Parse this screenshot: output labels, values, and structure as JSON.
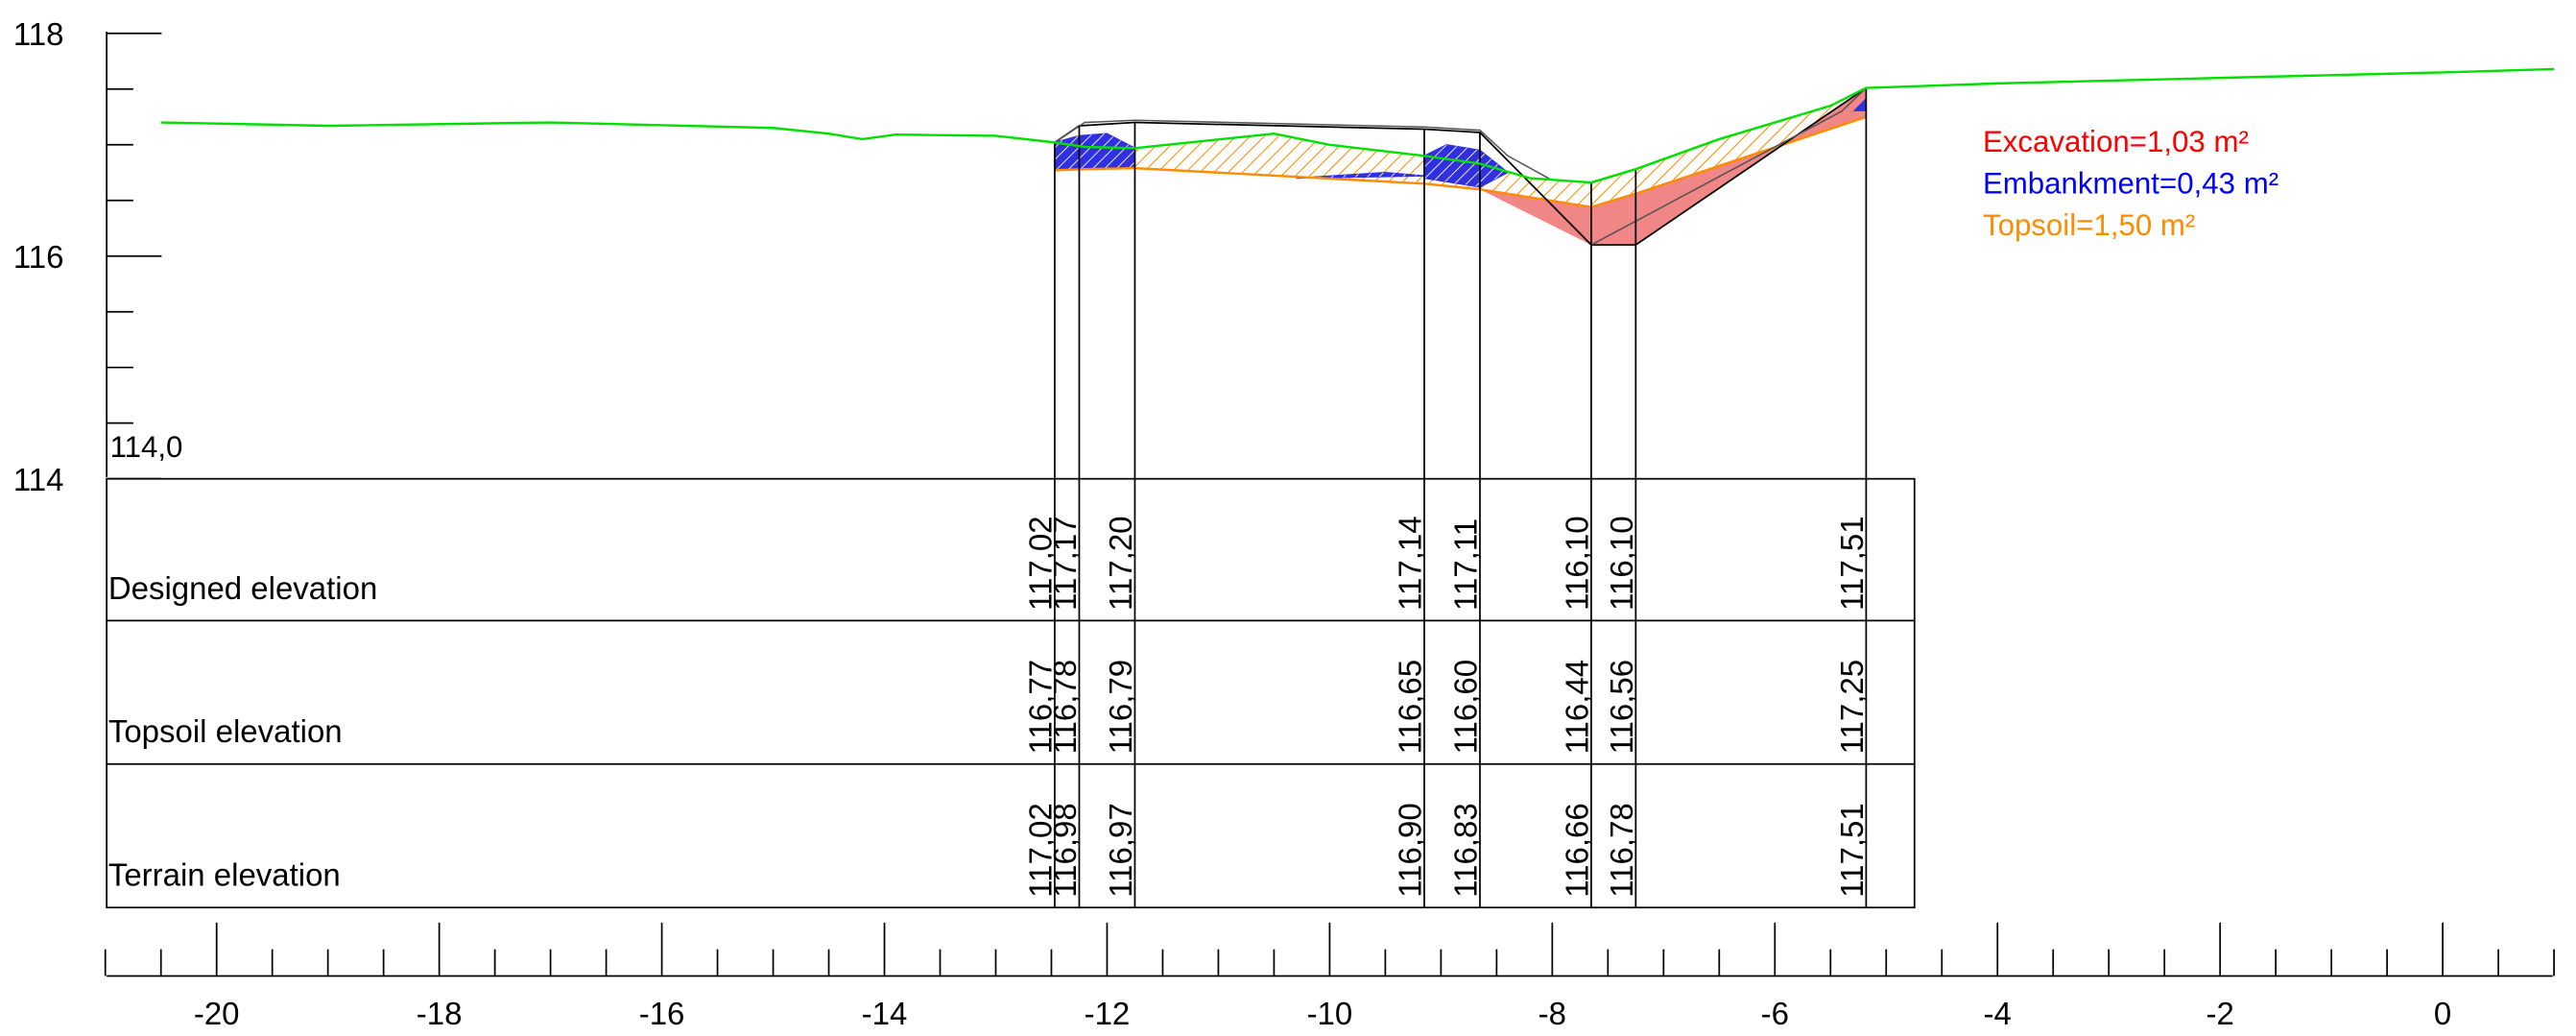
{
  "chart_data": {
    "type": "area",
    "title": "",
    "xlabel": "",
    "ylabel": "",
    "xlim": [
      -21,
      1
    ],
    "ylim": [
      114,
      118
    ],
    "x_ticks": [
      -20,
      -18,
      -16,
      -14,
      -12,
      -10,
      -8,
      -6,
      -4,
      -2,
      0
    ],
    "y_ticks": [
      118,
      116,
      114
    ],
    "grid": false,
    "datum_label": "114,0",
    "legend_position": "top-right",
    "legend": [
      {
        "label": "Excavation=1,03 m²",
        "color": "#ff0000"
      },
      {
        "label": "Embankment=0,43 m²",
        "color": "#0000ff"
      },
      {
        "label": "Topsoil=1,50 m²",
        "color": "#ff8c00"
      }
    ],
    "colors": {
      "terrain": "#00e000",
      "excavation": "#f08080",
      "embankment": "#3030e0",
      "topsoil": "#ff8c00",
      "design": "#000000"
    },
    "terrain": [
      [
        -20.5,
        117.2
      ],
      [
        -19.0,
        117.17
      ],
      [
        -17.0,
        117.2
      ],
      [
        -15.0,
        117.15
      ],
      [
        -14.5,
        117.1
      ],
      [
        -14.2,
        117.05
      ],
      [
        -13.9,
        117.09
      ],
      [
        -13.0,
        117.08
      ],
      [
        -12.47,
        117.02
      ],
      [
        -12.2,
        116.98
      ],
      [
        -11.75,
        116.97
      ],
      [
        -10.5,
        117.1
      ],
      [
        -10.0,
        117.0
      ],
      [
        -9.15,
        116.9
      ],
      [
        -8.65,
        116.83
      ],
      [
        -8.2,
        116.7
      ],
      [
        -7.65,
        116.66
      ],
      [
        -7.25,
        116.78
      ],
      [
        -6.5,
        117.05
      ],
      [
        -5.5,
        117.35
      ],
      [
        -5.18,
        117.51
      ],
      [
        -4.0,
        117.55
      ],
      [
        -2.0,
        117.6
      ],
      [
        0.0,
        117.65
      ],
      [
        1.0,
        117.68
      ]
    ],
    "topsoil_line": [
      [
        -12.47,
        116.77
      ],
      [
        -12.2,
        116.78
      ],
      [
        -11.75,
        116.79
      ],
      [
        -9.15,
        116.65
      ],
      [
        -8.65,
        116.6
      ],
      [
        -7.65,
        116.44
      ],
      [
        -7.25,
        116.56
      ],
      [
        -5.18,
        117.25
      ]
    ],
    "design_profile": [
      [
        -12.47,
        117.02
      ],
      [
        -12.25,
        117.17
      ],
      [
        -11.75,
        117.2
      ],
      [
        -9.15,
        117.14
      ],
      [
        -8.65,
        117.11
      ],
      [
        -7.65,
        116.1
      ],
      [
        -7.25,
        116.1
      ],
      [
        -5.18,
        117.51
      ]
    ],
    "stations": [
      -12.47,
      -12.25,
      -11.75,
      -9.15,
      -8.65,
      -7.65,
      -7.25,
      -5.18
    ],
    "table": {
      "rows": [
        {
          "label": "Designed elevation",
          "values": [
            "117,02",
            "117,17",
            "117,20",
            "117,14",
            "117,11",
            "116,10",
            "116,10",
            "117,51"
          ]
        },
        {
          "label": "Topsoil elevation",
          "values": [
            "116,77",
            "116,78",
            "116,79",
            "116,65",
            "116,60",
            "116,44",
            "116,56",
            "117,25"
          ]
        },
        {
          "label": "Terrain elevation",
          "values": [
            "117,02",
            "116,98",
            "116,97",
            "116,90",
            "116,83",
            "116,66",
            "116,78",
            "117,51"
          ]
        }
      ]
    }
  }
}
